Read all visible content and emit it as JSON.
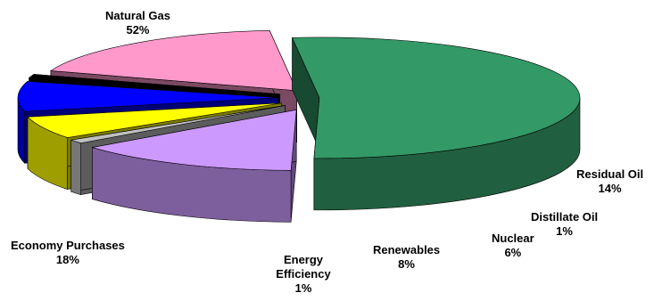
{
  "chart_data": {
    "type": "pie",
    "style": "3d-exploded",
    "slices": [
      {
        "name": "Natural Gas",
        "value": 52,
        "label": "52%",
        "color": "#339966"
      },
      {
        "name": "Residual Oil",
        "value": 14,
        "label": "14%",
        "color": "#CC99FF"
      },
      {
        "name": "Distillate Oil",
        "value": 1,
        "label": "1%",
        "color": "#C0C0C0"
      },
      {
        "name": "Nuclear",
        "value": 6,
        "label": "6%",
        "color": "#FFFF00"
      },
      {
        "name": "Renewables",
        "value": 8,
        "label": "8%",
        "color": "#0000FF"
      },
      {
        "name": "Energy Efficiency",
        "value": 1,
        "label": "1%",
        "color": "#000000"
      },
      {
        "name": "Economy Purchases",
        "value": 18,
        "label": "18%",
        "color": "#FF99CC"
      }
    ]
  }
}
